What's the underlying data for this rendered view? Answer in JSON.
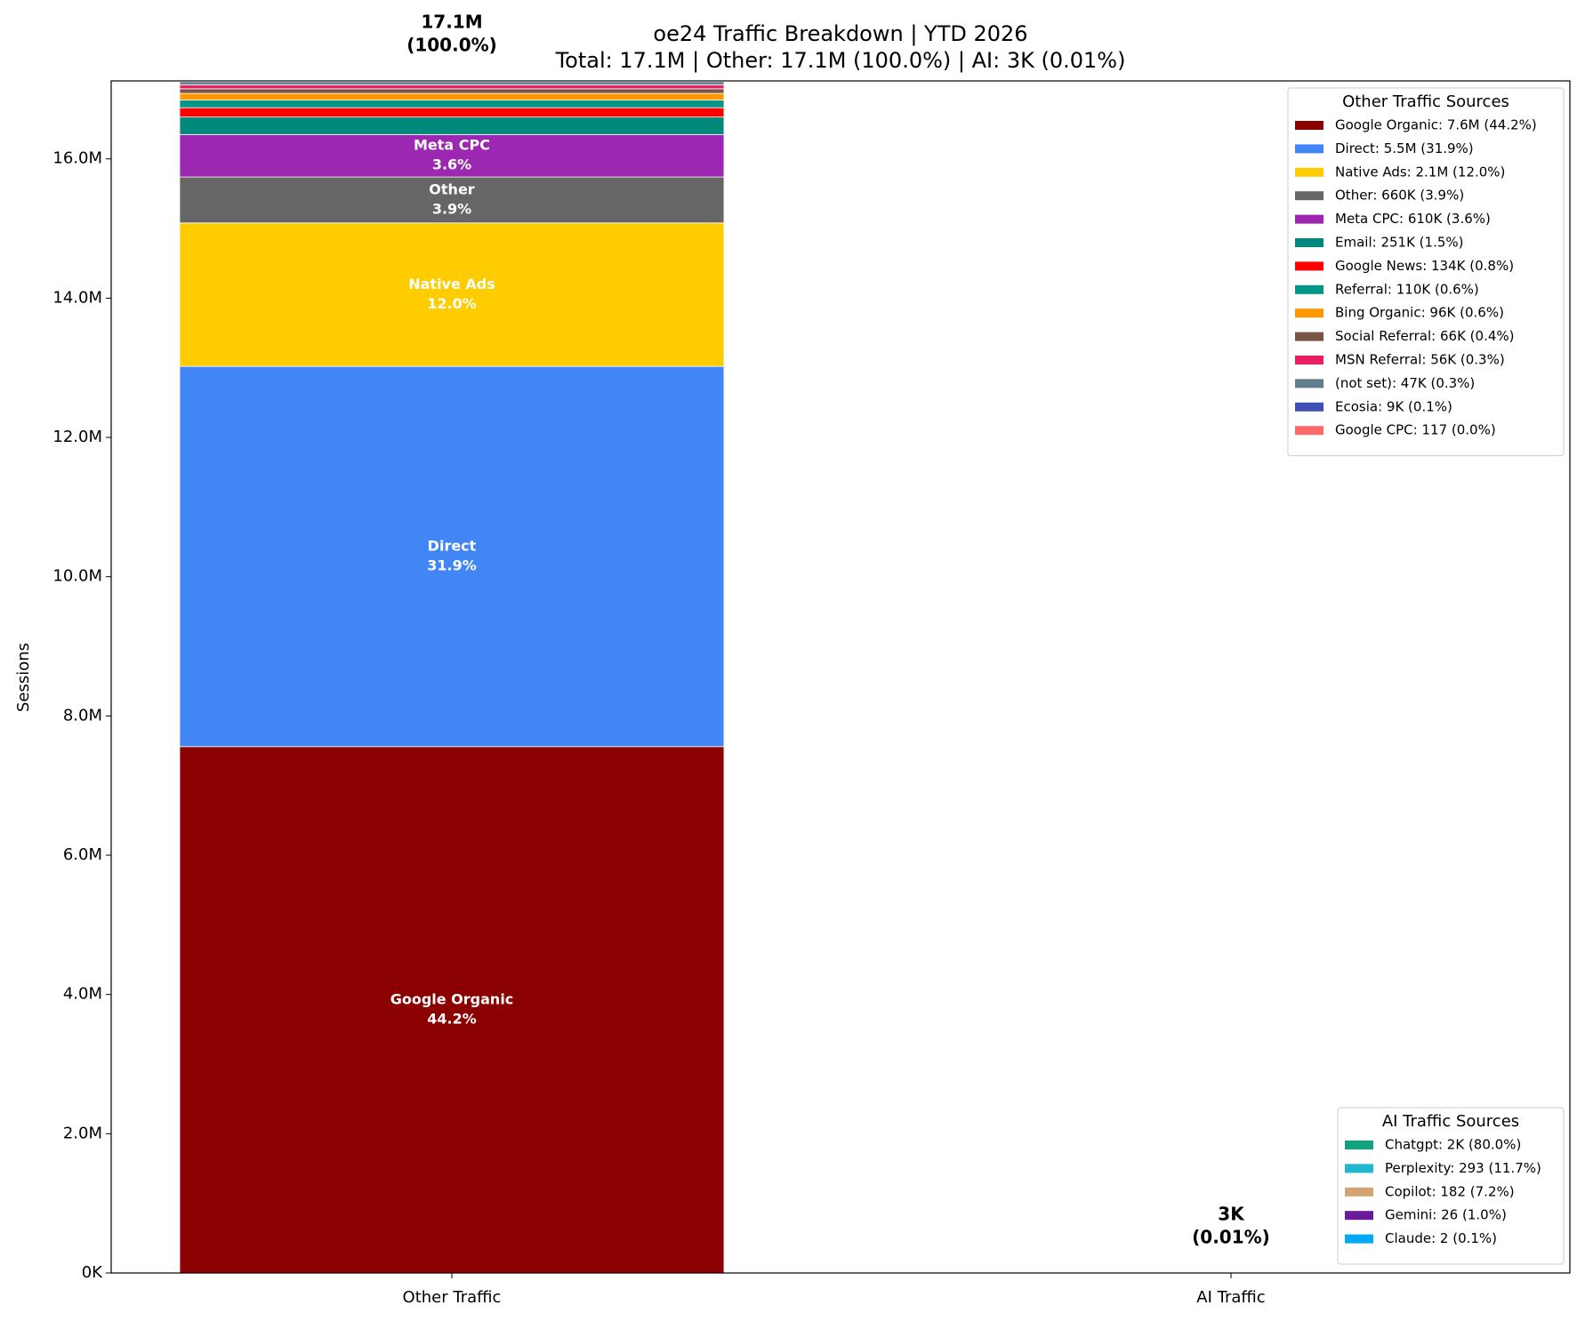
{
  "chart_data": {
    "type": "bar",
    "stacked": true,
    "title": "oe24 Traffic Breakdown | YTD 2026",
    "subtitle": "Total: 17.1M | Other: 17.1M (100.0%) | AI: 3K (0.01%)",
    "y_label": "Sessions",
    "categories": [
      "Other Traffic",
      "AI Traffic"
    ],
    "ylim": [
      0,
      17120000
    ],
    "yticks": [
      {
        "value": 0,
        "label": "0K"
      },
      {
        "value": 2000000,
        "label": "2.0M"
      },
      {
        "value": 4000000,
        "label": "4.0M"
      },
      {
        "value": 6000000,
        "label": "6.0M"
      },
      {
        "value": 8000000,
        "label": "8.0M"
      },
      {
        "value": 10000000,
        "label": "10.0M"
      },
      {
        "value": 12000000,
        "label": "12.0M"
      },
      {
        "value": 14000000,
        "label": "14.0M"
      },
      {
        "value": 16000000,
        "label": "16.0M"
      }
    ],
    "bar_labels": [
      {
        "total": "17.1M",
        "share": "(100.0%)"
      },
      {
        "total": "3K",
        "share": "(0.01%)"
      }
    ],
    "legends": [
      {
        "title": "Other Traffic Sources",
        "corner": "upper right"
      },
      {
        "title": "AI Traffic Sources",
        "corner": "lower right"
      }
    ],
    "series": [
      {
        "name": "Google Organic: 7.6M (44.2%)",
        "inner_label": "Google Organic",
        "value_labels": [
          "44.2%",
          null
        ],
        "color": "#8b0000",
        "legend": 0,
        "values": [
          7560000,
          null
        ]
      },
      {
        "name": "Direct: 5.5M (31.9%)",
        "inner_label": "Direct",
        "value_labels": [
          "31.9%",
          null
        ],
        "color": "#4285f4",
        "legend": 0,
        "values": [
          5460000,
          null
        ]
      },
      {
        "name": "Native Ads: 2.1M (12.0%)",
        "inner_label": "Native Ads",
        "value_labels": [
          "12.0%",
          null
        ],
        "color": "#ffcc00",
        "legend": 0,
        "values": [
          2060000,
          null
        ]
      },
      {
        "name": "Other: 660K (3.9%)",
        "inner_label": "Other",
        "value_labels": [
          "3.9%",
          null
        ],
        "color": "#666666",
        "legend": 0,
        "values": [
          660000,
          null
        ]
      },
      {
        "name": "Meta CPC: 610K (3.6%)",
        "inner_label": "Meta CPC",
        "value_labels": [
          "3.6%",
          null
        ],
        "color": "#9c27b0",
        "legend": 0,
        "values": [
          610000,
          null
        ]
      },
      {
        "name": "Email: 251K (1.5%)",
        "color": "#00897b",
        "legend": 0,
        "values": [
          251000,
          null
        ]
      },
      {
        "name": "Google News: 134K (0.8%)",
        "color": "#ff0000",
        "legend": 0,
        "values": [
          134000,
          null
        ]
      },
      {
        "name": "Referral: 110K (0.6%)",
        "color": "#009688",
        "legend": 0,
        "values": [
          110000,
          null
        ]
      },
      {
        "name": "Bing Organic: 96K (0.6%)",
        "color": "#ff9800",
        "legend": 0,
        "values": [
          96000,
          null
        ]
      },
      {
        "name": "Social Referral: 66K (0.4%)",
        "color": "#795548",
        "legend": 0,
        "values": [
          66000,
          null
        ]
      },
      {
        "name": "MSN Referral: 56K (0.3%)",
        "color": "#e91e63",
        "legend": 0,
        "values": [
          56000,
          null
        ]
      },
      {
        "name": "(not set): 47K (0.3%)",
        "color": "#607d8b",
        "legend": 0,
        "values": [
          47000,
          null
        ]
      },
      {
        "name": "Ecosia: 9K (0.1%)",
        "color": "#3f51b5",
        "legend": 0,
        "values": [
          9000,
          null
        ]
      },
      {
        "name": "Google CPC: 117 (0.0%)",
        "color": "#ff6b6b",
        "legend": 0,
        "values": [
          117,
          null
        ]
      },
      {
        "name": "Chatgpt: 2K (80.0%)",
        "color": "#10a37f",
        "legend": 1,
        "values": [
          null,
          2000
        ]
      },
      {
        "name": "Perplexity: 293 (11.7%)",
        "color": "#20b8cd",
        "legend": 1,
        "values": [
          null,
          293
        ]
      },
      {
        "name": "Copilot: 182 (7.2%)",
        "color": "#d4a373",
        "legend": 1,
        "values": [
          null,
          182
        ]
      },
      {
        "name": "Gemini: 26 (1.0%)",
        "color": "#6a1b9a",
        "legend": 1,
        "values": [
          null,
          26
        ]
      },
      {
        "name": "Claude: 2 (0.1%)",
        "color": "#03a9f4",
        "legend": 1,
        "values": [
          null,
          2
        ]
      }
    ]
  }
}
